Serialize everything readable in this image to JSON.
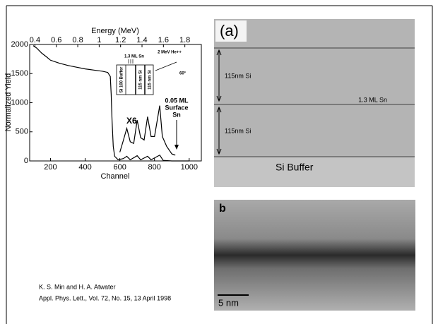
{
  "chart_data": {
    "type": "line",
    "x_label": "Channel",
    "x2_label": "Energy (MeV)",
    "y_label": "Normalized Yield",
    "xlim": [
      80,
      1070
    ],
    "xticks": [
      200,
      400,
      600,
      800,
      1000
    ],
    "x2lim": [
      0.351,
      1.954
    ],
    "x2ticks": [
      0.4,
      0.6,
      0.8,
      1.0,
      1.2,
      1.4,
      1.6,
      1.8
    ],
    "ylim": [
      0,
      2000
    ],
    "yticks": [
      0,
      500,
      1000,
      1500,
      2000
    ],
    "series": [
      {
        "color": "#000000",
        "x": [
          100,
          120,
          150,
          180,
          200,
          250,
          300,
          350,
          400,
          450,
          500,
          530,
          545,
          550,
          555,
          562,
          570,
          590,
          620,
          640,
          660,
          700,
          720,
          760,
          780,
          830,
          850,
          900,
          950,
          1000
        ],
        "values": [
          1980,
          1940,
          1850,
          1780,
          1730,
          1680,
          1640,
          1610,
          1580,
          1560,
          1540,
          1520,
          1450,
          1150,
          700,
          250,
          80,
          20,
          40,
          80,
          20,
          90,
          20,
          80,
          20,
          100,
          10,
          0,
          0,
          0
        ]
      },
      {
        "color": "#000000",
        "x": [
          600,
          620,
          640,
          660,
          680,
          700,
          720,
          740,
          760,
          780,
          800,
          830,
          845,
          870,
          900,
          920
        ],
        "values": [
          150,
          350,
          560,
          330,
          300,
          700,
          400,
          360,
          760,
          420,
          420,
          950,
          420,
          250,
          120,
          100
        ]
      }
    ],
    "annotations": [
      "X6",
      "0.05 ML",
      "Surface",
      "Sn"
    ],
    "inset": {
      "labels": [
        "1.3 ML Sn",
        "2 MeV He++",
        "Si 100 Buffer",
        "115 nm Si",
        "115 nm Si",
        "60°"
      ]
    }
  },
  "images": {
    "a": {
      "label": "(a)",
      "texts": [
        "115nm Si",
        "1.3 ML Sn",
        "115nm Si",
        "Si Buffer"
      ]
    },
    "b": {
      "label": "b",
      "scale": "5 nm"
    }
  },
  "citation": [
    "K. S. Min and H. A. Atwater",
    "Appl. Phys. Lett., Vol. 72, No. 15, 13 April 1998"
  ]
}
